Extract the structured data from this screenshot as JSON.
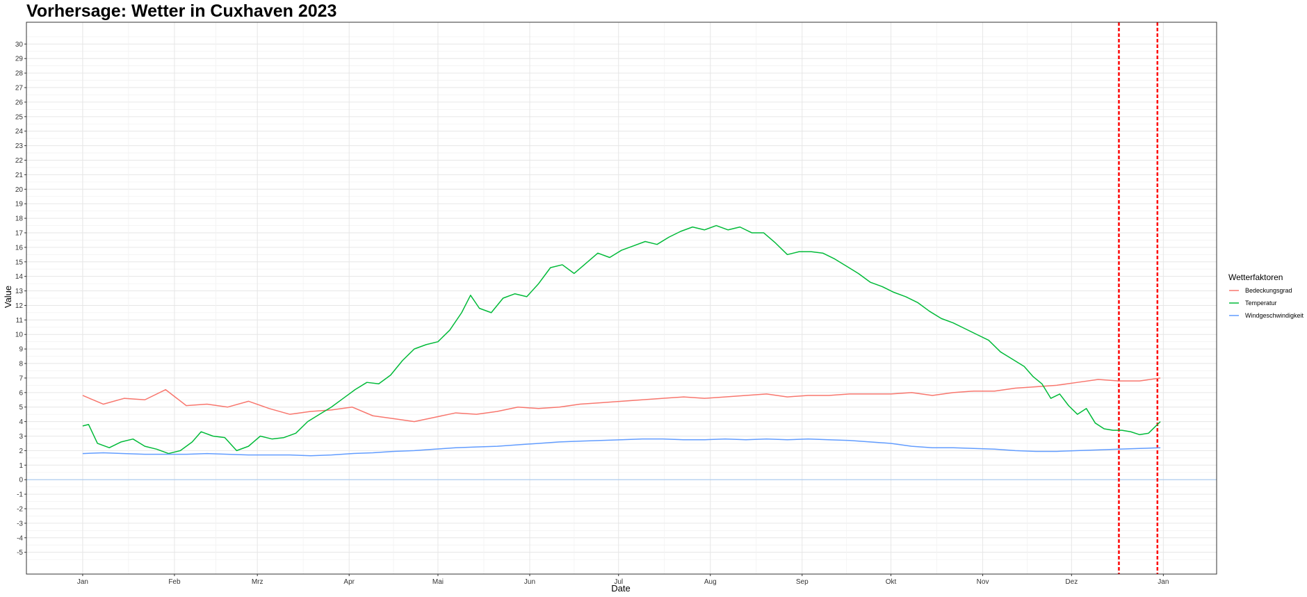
{
  "chart_data": {
    "type": "line",
    "title": "Vorhersage: Wetter in Cuxhaven 2023",
    "xlabel": "Date",
    "ylabel": "Value",
    "x_range": [
      "2023-01-01",
      "2024-01-01"
    ],
    "ylim": [
      -6.5,
      31.5
    ],
    "y_ticks": [
      -5,
      -4,
      -3,
      -2,
      -1,
      0,
      1,
      2,
      3,
      4,
      5,
      6,
      7,
      8,
      9,
      10,
      11,
      12,
      13,
      14,
      15,
      16,
      17,
      18,
      19,
      20,
      21,
      22,
      23,
      24,
      25,
      26,
      27,
      28,
      29,
      30
    ],
    "x_ticks": [
      {
        "date": "2023-01-01",
        "label": "Jan"
      },
      {
        "date": "2023-02-01",
        "label": "Feb"
      },
      {
        "date": "2023-03-01",
        "label": "Mrz"
      },
      {
        "date": "2023-04-01",
        "label": "Apr"
      },
      {
        "date": "2023-05-01",
        "label": "Mai"
      },
      {
        "date": "2023-06-01",
        "label": "Jun"
      },
      {
        "date": "2023-07-01",
        "label": "Jul"
      },
      {
        "date": "2023-08-01",
        "label": "Aug"
      },
      {
        "date": "2023-09-01",
        "label": "Sep"
      },
      {
        "date": "2023-10-01",
        "label": "Okt"
      },
      {
        "date": "2023-11-01",
        "label": "Nov"
      },
      {
        "date": "2023-12-01",
        "label": "Dez"
      },
      {
        "date": "2024-01-01",
        "label": "Jan"
      }
    ],
    "grid": true,
    "legend": {
      "title": "Wetterfaktoren",
      "placement": "right"
    },
    "reference_lines": {
      "horizontal": [
        {
          "y": 0,
          "color": "#a6c8f0"
        }
      ],
      "vertical": [
        {
          "date": "2023-12-17",
          "color": "#ff0000",
          "style": "dashed"
        },
        {
          "date": "2023-12-30",
          "color": "#ff0000",
          "style": "dashed"
        }
      ]
    },
    "series": [
      {
        "name": "Bedeckungsgrad",
        "color": "#f8766d",
        "points": [
          [
            "2023-01-01",
            5.8
          ],
          [
            "2023-01-08",
            5.2
          ],
          [
            "2023-01-15",
            5.6
          ],
          [
            "2023-01-22",
            5.5
          ],
          [
            "2023-01-29",
            6.2
          ],
          [
            "2023-02-05",
            5.1
          ],
          [
            "2023-02-12",
            5.2
          ],
          [
            "2023-02-19",
            5.0
          ],
          [
            "2023-02-26",
            5.4
          ],
          [
            "2023-03-05",
            4.9
          ],
          [
            "2023-03-12",
            4.5
          ],
          [
            "2023-03-19",
            4.7
          ],
          [
            "2023-03-26",
            4.8
          ],
          [
            "2023-04-02",
            5.0
          ],
          [
            "2023-04-09",
            4.4
          ],
          [
            "2023-04-16",
            4.2
          ],
          [
            "2023-04-23",
            4.0
          ],
          [
            "2023-04-30",
            4.3
          ],
          [
            "2023-05-07",
            4.6
          ],
          [
            "2023-05-14",
            4.5
          ],
          [
            "2023-05-21",
            4.7
          ],
          [
            "2023-05-28",
            5.0
          ],
          [
            "2023-06-04",
            4.9
          ],
          [
            "2023-06-11",
            5.0
          ],
          [
            "2023-06-18",
            5.2
          ],
          [
            "2023-06-25",
            5.3
          ],
          [
            "2023-07-02",
            5.4
          ],
          [
            "2023-07-09",
            5.5
          ],
          [
            "2023-07-16",
            5.6
          ],
          [
            "2023-07-23",
            5.7
          ],
          [
            "2023-07-30",
            5.6
          ],
          [
            "2023-08-06",
            5.7
          ],
          [
            "2023-08-13",
            5.8
          ],
          [
            "2023-08-20",
            5.9
          ],
          [
            "2023-08-27",
            5.7
          ],
          [
            "2023-09-03",
            5.8
          ],
          [
            "2023-09-10",
            5.8
          ],
          [
            "2023-09-17",
            5.9
          ],
          [
            "2023-09-24",
            5.9
          ],
          [
            "2023-10-01",
            5.9
          ],
          [
            "2023-10-08",
            6.0
          ],
          [
            "2023-10-15",
            5.8
          ],
          [
            "2023-10-22",
            6.0
          ],
          [
            "2023-10-29",
            6.1
          ],
          [
            "2023-11-05",
            6.1
          ],
          [
            "2023-11-12",
            6.3
          ],
          [
            "2023-11-19",
            6.4
          ],
          [
            "2023-11-26",
            6.5
          ],
          [
            "2023-12-03",
            6.7
          ],
          [
            "2023-12-10",
            6.9
          ],
          [
            "2023-12-17",
            6.8
          ],
          [
            "2023-12-24",
            6.8
          ],
          [
            "2023-12-31",
            7.0
          ]
        ]
      },
      {
        "name": "Temperatur",
        "color": "#00ba38",
        "points": [
          [
            "2023-01-01",
            3.7
          ],
          [
            "2023-01-03",
            3.8
          ],
          [
            "2023-01-06",
            2.5
          ],
          [
            "2023-01-10",
            2.2
          ],
          [
            "2023-01-14",
            2.6
          ],
          [
            "2023-01-18",
            2.8
          ],
          [
            "2023-01-22",
            2.3
          ],
          [
            "2023-01-26",
            2.1
          ],
          [
            "2023-01-30",
            1.8
          ],
          [
            "2023-02-03",
            2.0
          ],
          [
            "2023-02-07",
            2.6
          ],
          [
            "2023-02-10",
            3.3
          ],
          [
            "2023-02-14",
            3.0
          ],
          [
            "2023-02-18",
            2.9
          ],
          [
            "2023-02-22",
            2.0
          ],
          [
            "2023-02-26",
            2.3
          ],
          [
            "2023-03-02",
            3.0
          ],
          [
            "2023-03-06",
            2.8
          ],
          [
            "2023-03-10",
            2.9
          ],
          [
            "2023-03-14",
            3.2
          ],
          [
            "2023-03-18",
            4.0
          ],
          [
            "2023-03-22",
            4.5
          ],
          [
            "2023-03-26",
            5.0
          ],
          [
            "2023-03-30",
            5.6
          ],
          [
            "2023-04-03",
            6.2
          ],
          [
            "2023-04-07",
            6.7
          ],
          [
            "2023-04-11",
            6.6
          ],
          [
            "2023-04-15",
            7.2
          ],
          [
            "2023-04-19",
            8.2
          ],
          [
            "2023-04-23",
            9.0
          ],
          [
            "2023-04-27",
            9.3
          ],
          [
            "2023-05-01",
            9.5
          ],
          [
            "2023-05-05",
            10.3
          ],
          [
            "2023-05-09",
            11.5
          ],
          [
            "2023-05-12",
            12.7
          ],
          [
            "2023-05-15",
            11.8
          ],
          [
            "2023-05-19",
            11.5
          ],
          [
            "2023-05-23",
            12.5
          ],
          [
            "2023-05-27",
            12.8
          ],
          [
            "2023-05-31",
            12.6
          ],
          [
            "2023-06-04",
            13.5
          ],
          [
            "2023-06-08",
            14.6
          ],
          [
            "2023-06-12",
            14.8
          ],
          [
            "2023-06-16",
            14.2
          ],
          [
            "2023-06-20",
            14.9
          ],
          [
            "2023-06-24",
            15.6
          ],
          [
            "2023-06-28",
            15.3
          ],
          [
            "2023-07-02",
            15.8
          ],
          [
            "2023-07-06",
            16.1
          ],
          [
            "2023-07-10",
            16.4
          ],
          [
            "2023-07-14",
            16.2
          ],
          [
            "2023-07-18",
            16.7
          ],
          [
            "2023-07-22",
            17.1
          ],
          [
            "2023-07-26",
            17.4
          ],
          [
            "2023-07-30",
            17.2
          ],
          [
            "2023-08-03",
            17.5
          ],
          [
            "2023-08-07",
            17.2
          ],
          [
            "2023-08-11",
            17.4
          ],
          [
            "2023-08-15",
            17.0
          ],
          [
            "2023-08-19",
            17.0
          ],
          [
            "2023-08-23",
            16.3
          ],
          [
            "2023-08-27",
            15.5
          ],
          [
            "2023-08-31",
            15.7
          ],
          [
            "2023-09-04",
            15.7
          ],
          [
            "2023-09-08",
            15.6
          ],
          [
            "2023-09-12",
            15.2
          ],
          [
            "2023-09-16",
            14.7
          ],
          [
            "2023-09-20",
            14.2
          ],
          [
            "2023-09-24",
            13.6
          ],
          [
            "2023-09-28",
            13.3
          ],
          [
            "2023-10-02",
            12.9
          ],
          [
            "2023-10-06",
            12.6
          ],
          [
            "2023-10-10",
            12.2
          ],
          [
            "2023-10-14",
            11.6
          ],
          [
            "2023-10-18",
            11.1
          ],
          [
            "2023-10-22",
            10.8
          ],
          [
            "2023-10-26",
            10.4
          ],
          [
            "2023-10-30",
            10.0
          ],
          [
            "2023-11-03",
            9.6
          ],
          [
            "2023-11-07",
            8.8
          ],
          [
            "2023-11-11",
            8.3
          ],
          [
            "2023-11-15",
            7.8
          ],
          [
            "2023-11-18",
            7.1
          ],
          [
            "2023-11-21",
            6.6
          ],
          [
            "2023-11-24",
            5.6
          ],
          [
            "2023-11-27",
            5.9
          ],
          [
            "2023-11-30",
            5.1
          ],
          [
            "2023-12-03",
            4.5
          ],
          [
            "2023-12-06",
            4.9
          ],
          [
            "2023-12-09",
            3.9
          ],
          [
            "2023-12-12",
            3.5
          ],
          [
            "2023-12-15",
            3.4
          ],
          [
            "2023-12-18",
            3.4
          ],
          [
            "2023-12-21",
            3.3
          ],
          [
            "2023-12-24",
            3.1
          ],
          [
            "2023-12-27",
            3.2
          ],
          [
            "2023-12-29",
            3.6
          ],
          [
            "2023-12-31",
            4.0
          ]
        ]
      },
      {
        "name": "Windgeschwindigkeit",
        "color": "#619cff",
        "points": [
          [
            "2023-01-01",
            1.8
          ],
          [
            "2023-01-08",
            1.85
          ],
          [
            "2023-01-15",
            1.8
          ],
          [
            "2023-01-22",
            1.75
          ],
          [
            "2023-01-29",
            1.75
          ],
          [
            "2023-02-05",
            1.75
          ],
          [
            "2023-02-12",
            1.8
          ],
          [
            "2023-02-19",
            1.75
          ],
          [
            "2023-02-26",
            1.7
          ],
          [
            "2023-03-05",
            1.7
          ],
          [
            "2023-03-12",
            1.7
          ],
          [
            "2023-03-19",
            1.65
          ],
          [
            "2023-03-26",
            1.7
          ],
          [
            "2023-04-02",
            1.8
          ],
          [
            "2023-04-09",
            1.85
          ],
          [
            "2023-04-16",
            1.95
          ],
          [
            "2023-04-23",
            2.0
          ],
          [
            "2023-04-30",
            2.1
          ],
          [
            "2023-05-07",
            2.2
          ],
          [
            "2023-05-14",
            2.25
          ],
          [
            "2023-05-21",
            2.3
          ],
          [
            "2023-05-28",
            2.4
          ],
          [
            "2023-06-04",
            2.5
          ],
          [
            "2023-06-11",
            2.6
          ],
          [
            "2023-06-18",
            2.65
          ],
          [
            "2023-06-25",
            2.7
          ],
          [
            "2023-07-02",
            2.75
          ],
          [
            "2023-07-09",
            2.8
          ],
          [
            "2023-07-16",
            2.8
          ],
          [
            "2023-07-23",
            2.75
          ],
          [
            "2023-07-30",
            2.75
          ],
          [
            "2023-08-06",
            2.8
          ],
          [
            "2023-08-13",
            2.75
          ],
          [
            "2023-08-20",
            2.8
          ],
          [
            "2023-08-27",
            2.75
          ],
          [
            "2023-09-03",
            2.8
          ],
          [
            "2023-09-10",
            2.75
          ],
          [
            "2023-09-17",
            2.7
          ],
          [
            "2023-09-24",
            2.6
          ],
          [
            "2023-10-01",
            2.5
          ],
          [
            "2023-10-08",
            2.3
          ],
          [
            "2023-10-15",
            2.2
          ],
          [
            "2023-10-22",
            2.2
          ],
          [
            "2023-10-29",
            2.15
          ],
          [
            "2023-11-05",
            2.1
          ],
          [
            "2023-11-12",
            2.0
          ],
          [
            "2023-11-19",
            1.95
          ],
          [
            "2023-11-26",
            1.95
          ],
          [
            "2023-12-03",
            2.0
          ],
          [
            "2023-12-10",
            2.05
          ],
          [
            "2023-12-17",
            2.1
          ],
          [
            "2023-12-24",
            2.15
          ],
          [
            "2023-12-31",
            2.2
          ]
        ]
      }
    ]
  }
}
